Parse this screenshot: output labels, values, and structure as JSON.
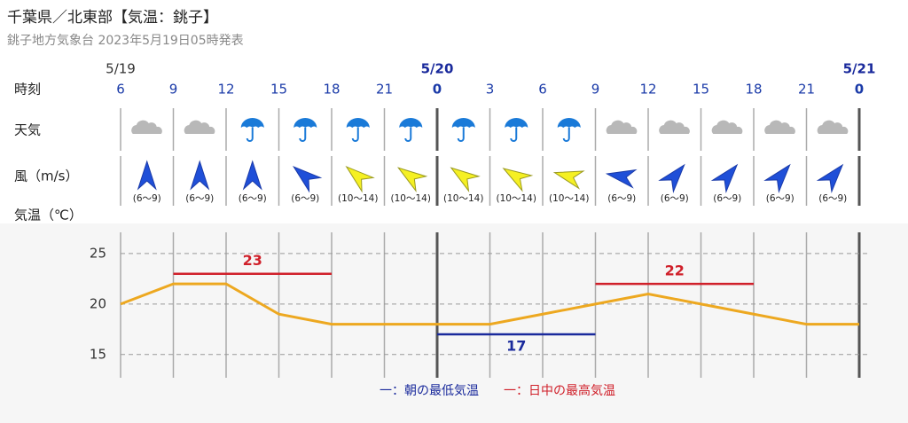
{
  "header": {
    "title": "千葉県／北東部【気温：銚子】",
    "subtitle": "銚子地方気象台 2023年5月19日05時発表"
  },
  "row_labels": {
    "time": "時刻",
    "weather": "天気",
    "wind": "風（m/s）",
    "temp": "気温（℃）"
  },
  "dates": [
    "5/19",
    null,
    null,
    null,
    null,
    null,
    "5/20",
    null,
    null,
    null,
    null,
    null,
    null,
    null,
    "5/21"
  ],
  "wind_speeds": [
    "(6〜9)",
    "(6〜9)",
    "(6〜9)",
    "(6〜9)",
    "(10〜14)",
    "(10〜14)",
    "(10〜14)",
    "(10〜14)",
    "(10〜14)",
    "(6〜9)",
    "(6〜9)",
    "(6〜9)",
    "(6〜9)",
    "(6〜9)"
  ],
  "chart_data": {
    "type": "line",
    "categories": [
      "6",
      "9",
      "12",
      "15",
      "18",
      "21",
      "0",
      "3",
      "6",
      "9",
      "12",
      "15",
      "18",
      "21",
      "0"
    ],
    "values": [
      20,
      22,
      22,
      19,
      18,
      18,
      18,
      18,
      19,
      20,
      21,
      20,
      19,
      18,
      18
    ],
    "color": "#eda820",
    "ylim": [
      12.7,
      27.1
    ],
    "yticks": [
      15,
      20,
      25
    ],
    "grid": true,
    "min_temps": {
      "name": "一：朝の最低気温",
      "color": "#1a2a9c",
      "segments": [
        {
          "value": 17,
          "from": 6,
          "to": 9
        }
      ]
    },
    "max_temps": {
      "name": "一：日中の最高気温",
      "color": "#d0202a",
      "segments": [
        {
          "value": 23,
          "from": 1,
          "to": 4
        },
        {
          "value": 22,
          "from": 9,
          "to": 12
        }
      ]
    }
  }
}
